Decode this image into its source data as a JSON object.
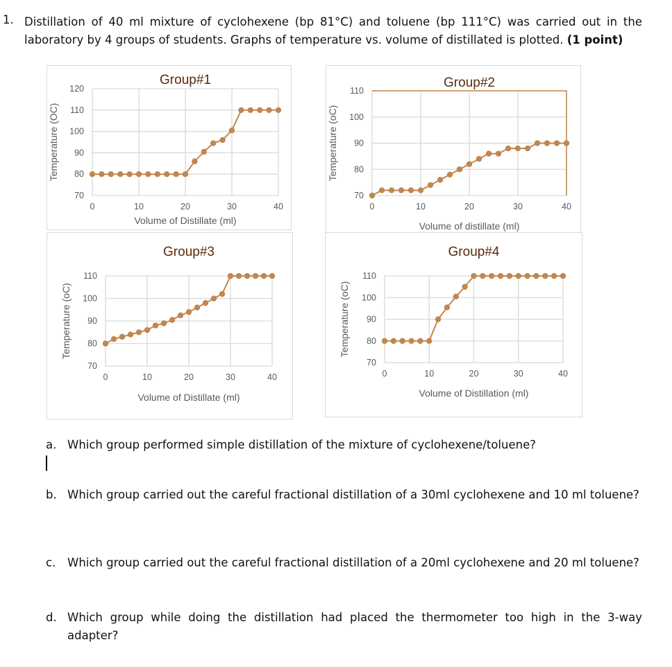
{
  "question": {
    "number": "1.",
    "text": "Distillation of 40 ml mixture of cyclohexene (bp 81°C) and toluene (bp 111°C) was carried out in the laboratory by 4 groups of students. Graphs of temperature vs. volume of distillated is plotted.",
    "points": "(1 point)"
  },
  "sub_questions": [
    {
      "letter": "a.",
      "text": "Which group performed simple distillation of the mixture of cyclohexene/toluene?"
    },
    {
      "letter": "b.",
      "text": "Which group carried out the careful fractional distillation of a 30ml cyclohexene and 10 ml toluene?"
    },
    {
      "letter": "c.",
      "text": "Which group carried out the careful fractional distillation of a 20ml cyclohexene and 20 ml toluene?"
    },
    {
      "letter": "d.",
      "text": "Which group while doing the distillation had placed the thermometer too high in the 3-way adapter?"
    }
  ],
  "colors": {
    "series": "#c0874f",
    "title": "#5a2a0c",
    "grid": "#d9d9d9",
    "text": "#595959"
  },
  "chart_data": [
    {
      "type": "line",
      "title": "Group#1",
      "xlabel": "Volume of Distillate (ml)",
      "ylabel": "Temperature (OC)",
      "xlim": [
        0,
        40
      ],
      "ylim": [
        70,
        120
      ],
      "xticks": [
        0,
        10,
        20,
        30,
        40
      ],
      "yticks": [
        70,
        80,
        90,
        100,
        110,
        120
      ],
      "grid": true,
      "markers": true,
      "x": [
        0,
        2,
        4,
        6,
        8,
        10,
        12,
        14,
        16,
        18,
        20,
        22,
        24,
        26,
        28,
        30,
        32,
        34,
        36,
        38,
        40
      ],
      "y": [
        80,
        80,
        80,
        80,
        80,
        80,
        80,
        80,
        80,
        80,
        80,
        86,
        90.5,
        94.5,
        96,
        100.5,
        110,
        110,
        110,
        110,
        110
      ]
    },
    {
      "type": "line",
      "title": "Group#2",
      "xlabel": "Volume of distillate (ml)",
      "ylabel": "Temperature (oC)",
      "xlim": [
        0,
        40
      ],
      "ylim": [
        70,
        110
      ],
      "xticks": [
        0,
        10,
        20,
        30,
        40
      ],
      "yticks": [
        70,
        80,
        90,
        100,
        110
      ],
      "grid": true,
      "markers": true,
      "x": [
        0,
        2,
        4,
        6,
        8,
        10,
        12,
        14,
        16,
        18,
        20,
        22,
        24,
        26,
        28,
        30,
        32,
        34,
        36,
        38,
        40
      ],
      "y": [
        70,
        72,
        72,
        72,
        72,
        72,
        74,
        76,
        78,
        80,
        82,
        84,
        86,
        86,
        88,
        88,
        88,
        90,
        90,
        90,
        90
      ]
    },
    {
      "type": "line",
      "title": "Group#3",
      "xlabel": "Volume of Distillate (ml)",
      "ylabel": "Temperature (oC)",
      "xlim": [
        0,
        40
      ],
      "ylim": [
        70,
        110
      ],
      "xticks": [
        0,
        10,
        20,
        30,
        40
      ],
      "yticks": [
        70,
        80,
        90,
        100,
        110
      ],
      "grid": true,
      "markers": true,
      "x": [
        0,
        2,
        4,
        6,
        8,
        10,
        12,
        14,
        16,
        18,
        20,
        22,
        24,
        26,
        28,
        30,
        32,
        34,
        36,
        38,
        40
      ],
      "y": [
        80,
        82,
        83,
        84,
        85,
        86,
        88,
        89,
        90.5,
        92.5,
        94,
        96,
        98,
        100,
        102,
        110,
        110,
        110,
        110,
        110,
        110
      ]
    },
    {
      "type": "line",
      "title": "Group#4",
      "xlabel": "Volume of Distillation (ml)",
      "ylabel": "Temperature (oC)",
      "xlim": [
        0,
        40
      ],
      "ylim": [
        70,
        110
      ],
      "xticks": [
        0,
        10,
        20,
        30,
        40
      ],
      "yticks": [
        70,
        80,
        90,
        100,
        110
      ],
      "grid": true,
      "markers": true,
      "x": [
        0,
        2,
        4,
        6,
        8,
        10,
        12,
        14,
        16,
        18,
        20,
        22,
        24,
        26,
        28,
        30,
        32,
        34,
        36,
        38,
        40
      ],
      "y": [
        80,
        80,
        80,
        80,
        80,
        80,
        90,
        95.5,
        100.5,
        105,
        110,
        110,
        110,
        110,
        110,
        110,
        110,
        110,
        110,
        110,
        110
      ]
    }
  ]
}
